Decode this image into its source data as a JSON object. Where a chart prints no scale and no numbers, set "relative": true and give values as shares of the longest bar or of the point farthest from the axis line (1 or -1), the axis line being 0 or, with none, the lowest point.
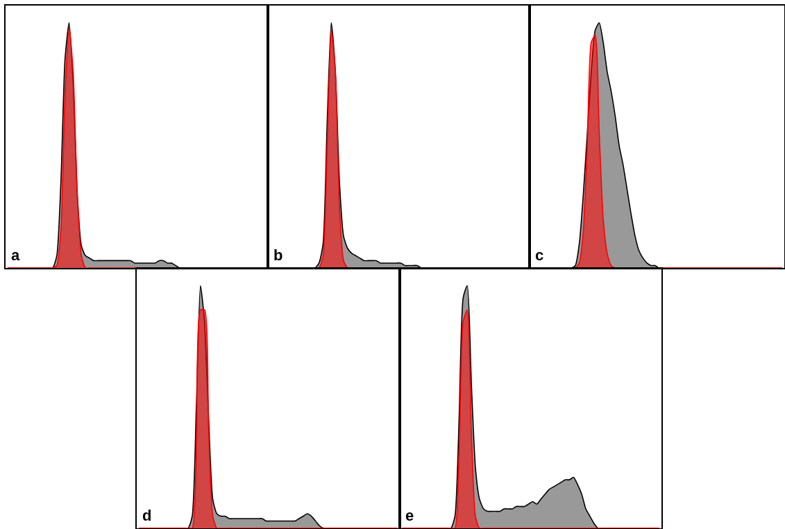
{
  "chart_data": [
    {
      "type": "area",
      "relative": true,
      "annotations": [
        "a"
      ],
      "categories": [
        null,
        null,
        null,
        null,
        null,
        null,
        null,
        null,
        null,
        null,
        null,
        null,
        null,
        null,
        null,
        null,
        null,
        null,
        null,
        null,
        null,
        null,
        null,
        null,
        null,
        null,
        null,
        null,
        null,
        null,
        null,
        null,
        null,
        null,
        null,
        null,
        null,
        null,
        null,
        null,
        null,
        null,
        null,
        null,
        null,
        null,
        null,
        null,
        null,
        null,
        null,
        null,
        null,
        null,
        null,
        null,
        null,
        null,
        null,
        null,
        null,
        null,
        null,
        null
      ],
      "series": [
        {
          "color": "#000000",
          "values": [
            0,
            0,
            0,
            0,
            0,
            0,
            0,
            0,
            0,
            0,
            0,
            0,
            0.05,
            0.35,
            0.85,
            1,
            0.75,
            0.3,
            0.09,
            0.05,
            0.04,
            0.03,
            0.03,
            0.03,
            0.03,
            0.03,
            0.03,
            0.03,
            0.03,
            0.03,
            0.03,
            0.02,
            0.02,
            0.02,
            0.02,
            0.02,
            0.02,
            0.03,
            0.03,
            0.02,
            0.02,
            0.01,
            0,
            0,
            0,
            0,
            0,
            0,
            0,
            0,
            0,
            0,
            0,
            0,
            0,
            0,
            0,
            0,
            0,
            0,
            0,
            0,
            0,
            0
          ]
        },
        {
          "color": "#ff0000",
          "values": [
            0,
            0,
            0,
            0,
            0,
            0,
            0,
            0,
            0,
            0,
            0,
            0,
            0.01,
            0.15,
            0.7,
            0.98,
            0.8,
            0.3,
            0.05,
            0,
            0,
            0,
            0,
            0,
            0,
            0,
            0,
            0,
            0,
            0,
            0,
            0,
            0,
            0,
            0,
            0,
            0,
            0,
            0,
            0,
            0,
            0,
            0,
            0,
            0,
            0,
            0,
            0,
            0,
            0,
            0,
            0,
            0,
            0,
            0,
            0,
            0,
            0,
            0,
            0,
            0,
            0,
            0,
            0
          ]
        }
      ]
    },
    {
      "type": "area",
      "relative": true,
      "annotations": [
        "b"
      ],
      "categories": [
        null,
        null,
        null,
        null,
        null,
        null,
        null,
        null,
        null,
        null,
        null,
        null,
        null,
        null,
        null,
        null,
        null,
        null,
        null,
        null,
        null,
        null,
        null,
        null,
        null,
        null,
        null,
        null,
        null,
        null,
        null,
        null,
        null,
        null,
        null,
        null,
        null,
        null,
        null,
        null,
        null,
        null,
        null,
        null,
        null,
        null,
        null,
        null,
        null,
        null,
        null,
        null,
        null,
        null,
        null,
        null,
        null,
        null,
        null,
        null,
        null,
        null,
        null,
        null
      ],
      "series": [
        {
          "color": "#000000",
          "values": [
            0,
            0,
            0,
            0,
            0,
            0,
            0,
            0,
            0,
            0,
            0,
            0,
            0.02,
            0.1,
            0.6,
            1,
            0.8,
            0.35,
            0.13,
            0.08,
            0.06,
            0.05,
            0.04,
            0.03,
            0.03,
            0.03,
            0.03,
            0.02,
            0.02,
            0.02,
            0.02,
            0.02,
            0.02,
            0.01,
            0.01,
            0.01,
            0.01,
            0,
            0,
            0,
            0,
            0,
            0,
            0,
            0,
            0,
            0,
            0,
            0,
            0,
            0,
            0,
            0,
            0,
            0,
            0,
            0,
            0,
            0,
            0,
            0,
            0,
            0,
            0
          ]
        },
        {
          "color": "#ff0000",
          "values": [
            0,
            0,
            0,
            0,
            0,
            0,
            0,
            0,
            0,
            0,
            0,
            0,
            0,
            0.05,
            0.5,
            0.97,
            0.8,
            0.25,
            0.03,
            0,
            0,
            0,
            0,
            0,
            0,
            0,
            0,
            0,
            0,
            0,
            0,
            0,
            0,
            0,
            0,
            0,
            0,
            0,
            0,
            0,
            0,
            0,
            0,
            0,
            0,
            0,
            0,
            0,
            0,
            0,
            0,
            0,
            0,
            0,
            0,
            0,
            0,
            0,
            0,
            0,
            0,
            0,
            0,
            0
          ]
        }
      ]
    },
    {
      "type": "area",
      "relative": true,
      "annotations": [
        "c"
      ],
      "categories": [
        null,
        null,
        null,
        null,
        null,
        null,
        null,
        null,
        null,
        null,
        null,
        null,
        null,
        null,
        null,
        null,
        null,
        null,
        null,
        null,
        null,
        null,
        null,
        null,
        null,
        null,
        null,
        null,
        null,
        null,
        null,
        null,
        null,
        null,
        null,
        null,
        null,
        null,
        null,
        null,
        null,
        null,
        null,
        null,
        null,
        null,
        null,
        null,
        null,
        null,
        null,
        null,
        null,
        null,
        null,
        null,
        null,
        null,
        null,
        null,
        null,
        null,
        null,
        null
      ],
      "series": [
        {
          "color": "#000000",
          "values": [
            0,
            0,
            0,
            0,
            0,
            0,
            0,
            0,
            0,
            0,
            0,
            0.01,
            0.1,
            0.3,
            0.55,
            0.8,
            0.97,
            1,
            0.92,
            0.8,
            0.72,
            0.62,
            0.5,
            0.42,
            0.32,
            0.22,
            0.13,
            0.07,
            0.04,
            0.02,
            0.01,
            0.01,
            0,
            0,
            0,
            0,
            0,
            0,
            0,
            0,
            0,
            0,
            0,
            0,
            0,
            0,
            0,
            0,
            0,
            0,
            0,
            0,
            0,
            0,
            0,
            0,
            0,
            0,
            0,
            0,
            0,
            0,
            0,
            0
          ]
        },
        {
          "color": "#ff0000",
          "values": [
            0,
            0,
            0,
            0,
            0,
            0,
            0,
            0,
            0,
            0,
            0,
            0,
            0.02,
            0.15,
            0.5,
            0.92,
            0.95,
            0.55,
            0.2,
            0.06,
            0.01,
            0,
            0,
            0,
            0,
            0,
            0,
            0,
            0,
            0,
            0,
            0,
            0,
            0,
            0,
            0,
            0,
            0,
            0,
            0,
            0,
            0,
            0,
            0,
            0,
            0,
            0,
            0,
            0,
            0,
            0,
            0,
            0,
            0,
            0,
            0,
            0,
            0,
            0,
            0,
            0,
            0,
            0,
            0
          ]
        }
      ]
    },
    {
      "type": "area",
      "relative": true,
      "annotations": [
        "d"
      ],
      "categories": [
        null,
        null,
        null,
        null,
        null,
        null,
        null,
        null,
        null,
        null,
        null,
        null,
        null,
        null,
        null,
        null,
        null,
        null,
        null,
        null,
        null,
        null,
        null,
        null,
        null,
        null,
        null,
        null,
        null,
        null,
        null,
        null,
        null,
        null,
        null,
        null,
        null,
        null,
        null,
        null,
        null,
        null,
        null,
        null,
        null,
        null,
        null,
        null,
        null,
        null,
        null,
        null,
        null,
        null,
        null,
        null,
        null,
        null,
        null,
        null,
        null,
        null,
        null,
        null
      ],
      "series": [
        {
          "color": "#000000",
          "values": [
            0,
            0,
            0,
            0,
            0,
            0,
            0,
            0,
            0,
            0,
            0,
            0,
            0,
            0.05,
            0.5,
            1,
            0.85,
            0.45,
            0.12,
            0.06,
            0.05,
            0.05,
            0.04,
            0.04,
            0.04,
            0.04,
            0.04,
            0.04,
            0.04,
            0.04,
            0.04,
            0.03,
            0.03,
            0.03,
            0.03,
            0.03,
            0.03,
            0.03,
            0.03,
            0.04,
            0.05,
            0.06,
            0.05,
            0.03,
            0.01,
            0,
            0,
            0,
            0,
            0,
            0,
            0,
            0,
            0,
            0,
            0,
            0,
            0,
            0,
            0,
            0,
            0,
            0,
            0
          ]
        },
        {
          "color": "#ff0000",
          "values": [
            0,
            0,
            0,
            0,
            0,
            0,
            0,
            0,
            0,
            0,
            0,
            0,
            0,
            0,
            0.3,
            0.9,
            0.9,
            0.4,
            0.05,
            0,
            0,
            0,
            0,
            0,
            0,
            0,
            0,
            0,
            0,
            0,
            0,
            0,
            0,
            0,
            0,
            0,
            0,
            0,
            0,
            0,
            0,
            0,
            0,
            0,
            0,
            0,
            0,
            0,
            0,
            0,
            0,
            0,
            0,
            0,
            0,
            0,
            0,
            0,
            0,
            0,
            0,
            0,
            0,
            0
          ]
        }
      ]
    },
    {
      "type": "area",
      "relative": true,
      "annotations": [
        "e"
      ],
      "categories": [
        null,
        null,
        null,
        null,
        null,
        null,
        null,
        null,
        null,
        null,
        null,
        null,
        null,
        null,
        null,
        null,
        null,
        null,
        null,
        null,
        null,
        null,
        null,
        null,
        null,
        null,
        null,
        null,
        null,
        null,
        null,
        null,
        null,
        null,
        null,
        null,
        null,
        null,
        null,
        null,
        null,
        null,
        null,
        null,
        null,
        null,
        null,
        null,
        null,
        null,
        null,
        null,
        null,
        null,
        null,
        null,
        null,
        null,
        null,
        null,
        null,
        null,
        null,
        null
      ],
      "series": [
        {
          "color": "#000000",
          "values": [
            0,
            0,
            0,
            0,
            0,
            0,
            0,
            0,
            0,
            0,
            0,
            0,
            0,
            0.05,
            0.45,
            0.95,
            1,
            0.6,
            0.25,
            0.12,
            0.08,
            0.07,
            0.07,
            0.07,
            0.07,
            0.08,
            0.08,
            0.08,
            0.09,
            0.09,
            0.09,
            0.1,
            0.11,
            0.1,
            0.12,
            0.14,
            0.16,
            0.17,
            0.18,
            0.19,
            0.2,
            0.2,
            0.21,
            0.18,
            0.14,
            0.08,
            0.05,
            0.02,
            0,
            0,
            0,
            0,
            0,
            0,
            0,
            0,
            0,
            0,
            0,
            0,
            0,
            0,
            0,
            0
          ]
        },
        {
          "color": "#ff0000",
          "values": [
            0,
            0,
            0,
            0,
            0,
            0,
            0,
            0,
            0,
            0,
            0,
            0,
            0,
            0,
            0.3,
            0.85,
            0.9,
            0.4,
            0.05,
            0,
            0,
            0,
            0,
            0,
            0,
            0,
            0,
            0,
            0,
            0,
            0,
            0,
            0,
            0,
            0,
            0,
            0,
            0,
            0,
            0,
            0,
            0,
            0,
            0,
            0,
            0,
            0,
            0,
            0,
            0,
            0,
            0,
            0,
            0,
            0,
            0,
            0,
            0,
            0,
            0,
            0,
            0,
            0,
            0
          ]
        }
      ]
    }
  ]
}
